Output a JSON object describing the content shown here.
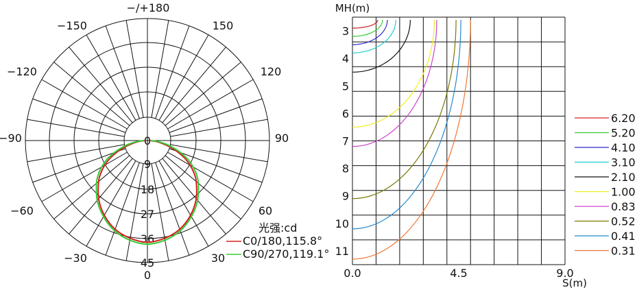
{
  "chart_data": [
    {
      "type": "polar",
      "angle_labels": {
        "top": "−/+180",
        "upper_left": "−150",
        "upper_right": "150",
        "left_upper": "−120",
        "right_upper": "120",
        "left": "−90",
        "right": "90",
        "left_lower": "−60",
        "right_lower": "60",
        "bottom_left": "−30",
        "bottom_right": "30",
        "bottom": "0"
      },
      "radial_ticks": [
        "0",
        "9",
        "18",
        "27",
        "36",
        "45"
      ],
      "radial_max": 45,
      "legend_title": "光强:cd",
      "series": [
        {
          "name": "C0/180,115.8°",
          "color": "#d42020",
          "half_angle_deg": [
            0,
            10,
            20,
            30,
            40,
            50,
            55,
            60,
            65,
            70,
            75,
            80,
            85,
            90
          ],
          "intensity": [
            37.5,
            36.6,
            34.8,
            31.8,
            28.0,
            23.5,
            21.0,
            18.2,
            15.0,
            11.5,
            8.0,
            5.0,
            2.8,
            0.8
          ]
        },
        {
          "name": "C90/270,119.1°",
          "color": "#33cc33",
          "half_angle_deg": [
            0,
            10,
            20,
            30,
            40,
            50,
            55,
            60,
            65,
            70,
            75,
            80,
            85,
            90
          ],
          "intensity": [
            38.2,
            37.3,
            35.4,
            32.4,
            28.8,
            24.5,
            22.2,
            19.5,
            16.5,
            13.0,
            9.5,
            6.5,
            3.5,
            1.2
          ]
        }
      ]
    },
    {
      "type": "contour",
      "xlabel": "S(m)",
      "ylabel": "MH(m)",
      "xlim": [
        0,
        9
      ],
      "ylim": [
        2.5,
        11.5
      ],
      "x_ticks": [
        "0.0",
        "4.5",
        "9.0"
      ],
      "y_ticks": [
        "3",
        "4",
        "5",
        "6",
        "7",
        "8",
        "9",
        "10",
        "11"
      ],
      "levels": [
        {
          "label": "6.20",
          "color": "#d42020",
          "radius_at_mh": [
            [
              2.6,
              1.05
            ],
            [
              2.9,
              0.1
            ]
          ]
        },
        {
          "label": "5.20",
          "color": "#33cc33",
          "radius_at_mh": [
            [
              2.6,
              1.25
            ],
            [
              3.2,
              0.1
            ]
          ]
        },
        {
          "label": "4.10",
          "color": "#2a2ad0",
          "radius_at_mh": [
            [
              2.6,
              1.45
            ],
            [
              3.5,
              0.1
            ]
          ]
        },
        {
          "label": "3.10",
          "color": "#22cccc",
          "radius_at_mh": [
            [
              2.6,
              1.8
            ],
            [
              3.8,
              0.1
            ]
          ]
        },
        {
          "label": "2.10",
          "color": "#111111",
          "radius_at_mh": [
            [
              2.6,
              2.4
            ],
            [
              4.5,
              0.1
            ]
          ]
        },
        {
          "label": "1.00",
          "color": "#eeee22",
          "radius_at_mh": [
            [
              2.6,
              3.4
            ],
            [
              6.5,
              0.1
            ]
          ]
        },
        {
          "label": "0.83",
          "color": "#cc44cc",
          "radius_at_mh": [
            [
              2.6,
              3.5
            ],
            [
              7.2,
              0.1
            ]
          ]
        },
        {
          "label": "0.52",
          "color": "#777700",
          "radius_at_mh": [
            [
              2.6,
              4.3
            ],
            [
              9.1,
              0.1
            ]
          ]
        },
        {
          "label": "0.41",
          "color": "#2288cc",
          "radius_at_mh": [
            [
              2.6,
              4.5
            ],
            [
              10.2,
              0.1
            ]
          ]
        },
        {
          "label": "0.31",
          "color": "#ee7733",
          "radius_at_mh": [
            [
              2.6,
              4.9
            ],
            [
              11.3,
              0.1
            ]
          ]
        }
      ]
    }
  ]
}
